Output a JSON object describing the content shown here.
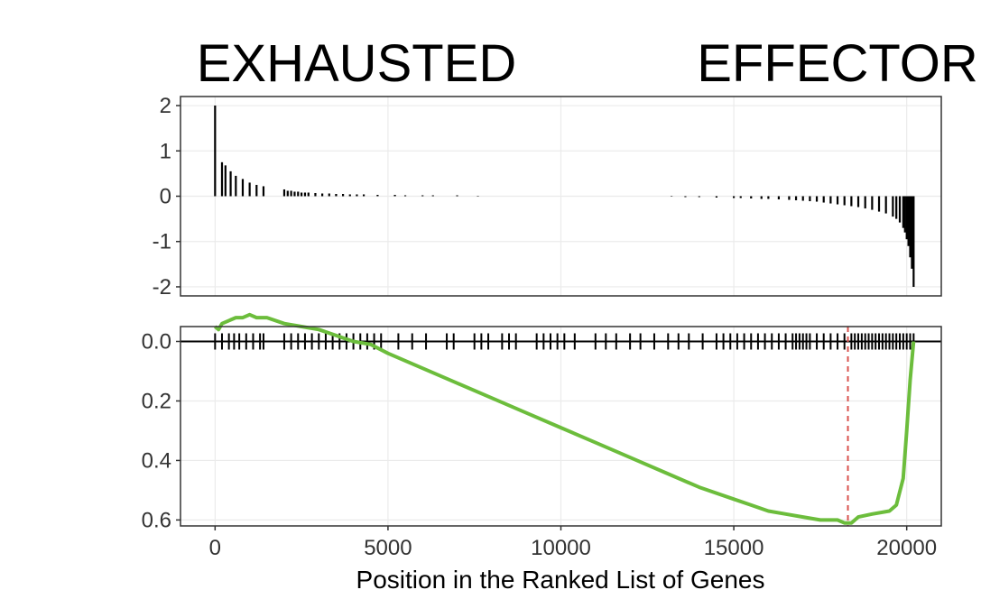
{
  "header": {
    "left_label": "EXHAUSTED",
    "right_label": "EFFECTOR"
  },
  "colors": {
    "running_score": "#6cbd3c",
    "peak_marker": "#d9534f",
    "bars": "#000000",
    "panel_border": "#333333",
    "grid": "#ebebeb"
  },
  "chart_data": [
    {
      "type": "bar",
      "panel": "ranked-metric",
      "xlim": [
        -1000,
        21000
      ],
      "ylim": [
        -2.2,
        2.2
      ],
      "y_ticks": [
        2,
        1,
        0,
        -1,
        -2
      ],
      "y_tick_labels": [
        "2",
        "1",
        "0",
        "-1",
        "-2"
      ],
      "grid": true,
      "x": [
        0,
        200,
        300,
        450,
        600,
        800,
        1000,
        1200,
        1400,
        2000,
        2100,
        2200,
        2300,
        2400,
        2500,
        2600,
        2700,
        2900,
        3100,
        3300,
        3500,
        3700,
        3900,
        4100,
        4300,
        4700,
        5200,
        5500,
        6000,
        6300,
        7000,
        7600,
        13200,
        13600,
        14000,
        14500,
        15000,
        15200,
        15500,
        15800,
        16000,
        16300,
        16600,
        16800,
        17000,
        17200,
        17400,
        17600,
        17800,
        18000,
        18200,
        18400,
        18600,
        18800,
        19000,
        19200,
        19400,
        19600,
        19700,
        19800,
        19900,
        19950,
        20000,
        20050,
        20100,
        20150,
        20200
      ],
      "values": [
        2.0,
        0.75,
        0.68,
        0.55,
        0.45,
        0.38,
        0.3,
        0.25,
        0.22,
        0.15,
        0.12,
        0.12,
        0.1,
        0.1,
        0.08,
        0.08,
        0.08,
        0.07,
        0.06,
        0.06,
        0.05,
        0.05,
        0.04,
        0.04,
        0.04,
        0.03,
        0.03,
        0.02,
        0.02,
        0.02,
        0.02,
        0.01,
        -0.01,
        -0.02,
        -0.02,
        -0.03,
        -0.04,
        -0.04,
        -0.05,
        -0.06,
        -0.06,
        -0.07,
        -0.08,
        -0.09,
        -0.1,
        -0.11,
        -0.12,
        -0.14,
        -0.16,
        -0.18,
        -0.2,
        -0.22,
        -0.24,
        -0.27,
        -0.3,
        -0.34,
        -0.38,
        -0.45,
        -0.5,
        -0.58,
        -0.7,
        -0.8,
        -0.95,
        -1.1,
        -1.35,
        -1.6,
        -2.0
      ]
    },
    {
      "type": "line",
      "panel": "running-enrichment-score",
      "xlabel": "Position in the Ranked List of Genes",
      "xlim": [
        -1000,
        21000
      ],
      "x_ticks": [
        0,
        5000,
        10000,
        15000,
        20000
      ],
      "x_tick_labels": [
        "0",
        "5000",
        "10000",
        "15000",
        "20000"
      ],
      "ylim": [
        -0.05,
        0.62
      ],
      "y_reversed": true,
      "y_ticks": [
        0.0,
        0.2,
        0.4,
        0.6
      ],
      "y_tick_labels": [
        "0.0",
        "0.2",
        "0.4",
        "0.6"
      ],
      "grid": true,
      "x": [
        0,
        100,
        200,
        400,
        600,
        800,
        1000,
        1200,
        1500,
        2000,
        2500,
        3000,
        3500,
        4000,
        4500,
        5000,
        6000,
        7000,
        8000,
        9000,
        10000,
        11000,
        12000,
        13000,
        14000,
        15000,
        15500,
        16000,
        16500,
        17000,
        17500,
        18000,
        18200,
        18400,
        18600,
        19000,
        19500,
        19700,
        19900,
        20000,
        20100,
        20200
      ],
      "values": [
        -0.05,
        -0.04,
        -0.06,
        -0.07,
        -0.08,
        -0.08,
        -0.09,
        -0.08,
        -0.08,
        -0.06,
        -0.05,
        -0.04,
        -0.02,
        0.0,
        0.01,
        0.04,
        0.09,
        0.14,
        0.19,
        0.24,
        0.29,
        0.34,
        0.39,
        0.44,
        0.49,
        0.53,
        0.55,
        0.57,
        0.58,
        0.59,
        0.6,
        0.6,
        0.61,
        0.61,
        0.59,
        0.58,
        0.57,
        0.55,
        0.46,
        0.3,
        0.13,
        0.0
      ],
      "baseline": 0.0,
      "gene_hits": [
        0,
        200,
        400,
        550,
        700,
        900,
        1100,
        1300,
        1400,
        2000,
        2200,
        2400,
        2600,
        2800,
        3000,
        3200,
        3400,
        3600,
        3800,
        4000,
        4200,
        4400,
        4600,
        4800,
        5300,
        5700,
        6100,
        6700,
        6900,
        7500,
        7700,
        7900,
        8300,
        8500,
        8700,
        9300,
        9500,
        9700,
        9900,
        10100,
        10400,
        11000,
        11300,
        11600,
        12000,
        12300,
        12700,
        13100,
        13400,
        13700,
        14100,
        14500,
        14700,
        14900,
        15100,
        15300,
        15500,
        15700,
        15900,
        16100,
        16300,
        16500,
        16700,
        16800,
        16900,
        17000,
        17100,
        17200,
        17400,
        17600,
        17800,
        18000,
        18200,
        18400,
        18500,
        18600,
        18700,
        18800,
        18900,
        19000,
        19100,
        19200,
        19300,
        19400,
        19500,
        19600,
        19700,
        19800,
        19900,
        20000,
        20100,
        20200
      ],
      "peak_x": 18300
    }
  ]
}
